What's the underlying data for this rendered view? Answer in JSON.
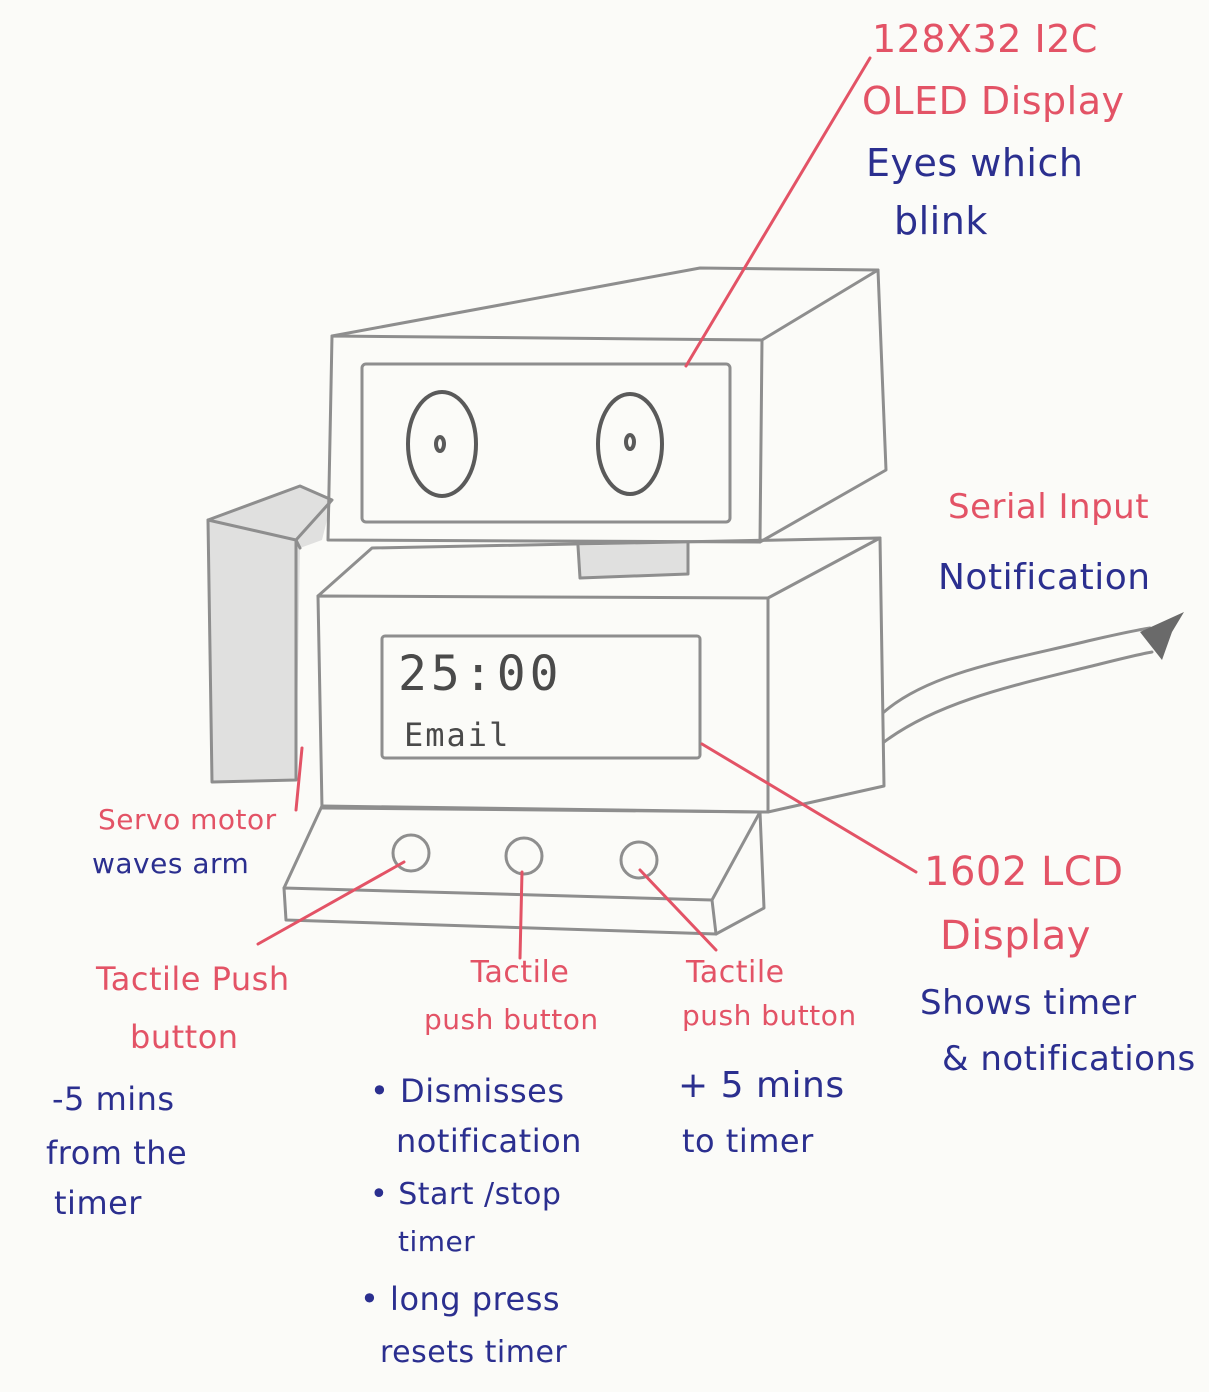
{
  "labels": {
    "oled_title_l1": "128X32 I2C",
    "oled_title_l2": "OLED Display",
    "oled_desc_l1": "Eyes which",
    "oled_desc_l2": "blink",
    "serial_title": "Serial Input",
    "serial_desc": "Notification",
    "servo_title": "Servo motor",
    "servo_desc": "waves arm",
    "lcd_title_l1": "1602 LCD",
    "lcd_title_l2": "Display",
    "lcd_desc_l1": "Shows timer",
    "lcd_desc_l2": "& notifications",
    "btn_left_title_l1": "Tactile Push",
    "btn_left_title_l2": "button",
    "btn_left_desc_l1": "-5 mins",
    "btn_left_desc_l2": "from the",
    "btn_left_desc_l3": "timer",
    "btn_mid_title_l1": "Tactile",
    "btn_mid_title_l2": "push button",
    "btn_mid_desc_l1": "• Dismisses",
    "btn_mid_desc_l2": "notification",
    "btn_mid_desc_l3": "• Start /stop",
    "btn_mid_desc_l4": "timer",
    "btn_mid_desc_l5": "• long press",
    "btn_mid_desc_l6": "resets timer",
    "btn_right_title_l1": "Tactile",
    "btn_right_title_l2": "push button",
    "btn_right_desc_l1": "+ 5 mins",
    "btn_right_desc_l2": "to timer"
  },
  "lcd_screen": {
    "timer": "25:00",
    "message": "Email"
  },
  "colors": {
    "component_label": "#e35366",
    "description": "#2b2f8f",
    "pencil": "#8e8e8e"
  }
}
